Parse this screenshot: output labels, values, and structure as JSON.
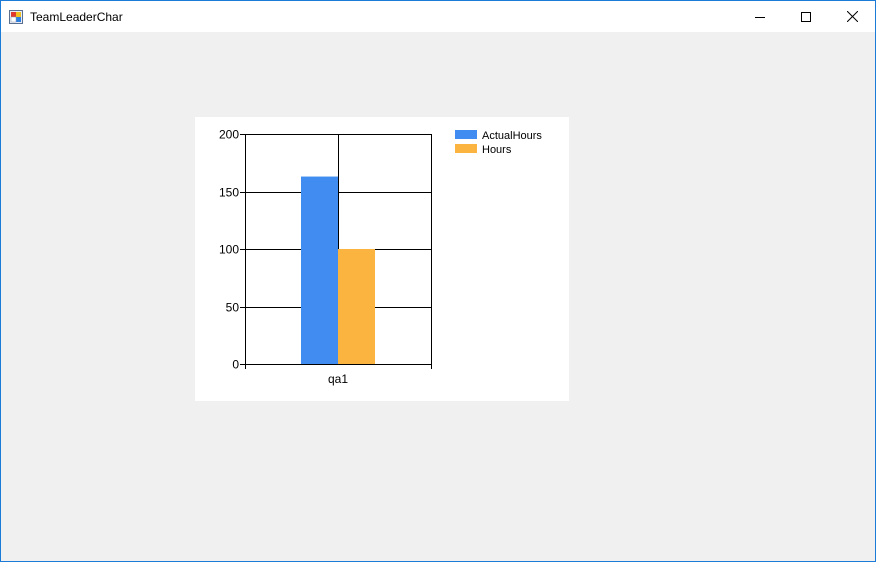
{
  "window": {
    "title": "TeamLeaderChar",
    "icons": [
      "app-icon",
      "minimize-icon",
      "maximize-icon",
      "close-icon"
    ]
  },
  "chart_data": {
    "type": "bar",
    "categories": [
      "qa1"
    ],
    "series": [
      {
        "name": "ActualHours",
        "values": [
          163
        ],
        "color": "#418cf0"
      },
      {
        "name": "Hours",
        "values": [
          100
        ],
        "color": "#fcb441"
      }
    ],
    "ylim": [
      0,
      200
    ],
    "yticks": [
      0,
      50,
      100,
      150,
      200
    ],
    "grid": true,
    "legend": "top-right",
    "title": "",
    "xlabel": "",
    "ylabel": ""
  }
}
